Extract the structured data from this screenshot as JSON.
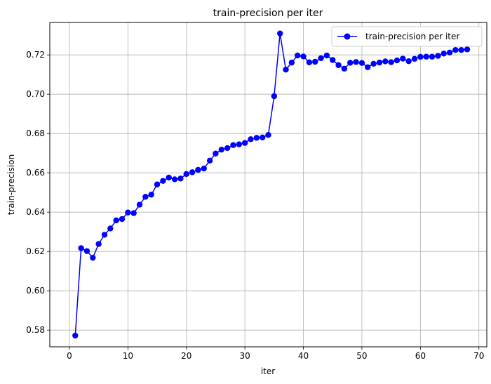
{
  "chart_data": {
    "type": "line",
    "title": "train-precision per iter",
    "xlabel": "iter",
    "ylabel": "train-precision",
    "xlim": [
      -3.35,
      71.35
    ],
    "ylim": [
      0.5715,
      0.7365
    ],
    "xticks": [
      0,
      10,
      20,
      30,
      40,
      50,
      60,
      70
    ],
    "yticks": [
      0.58,
      0.6,
      0.62,
      0.64,
      0.66,
      0.68,
      0.7,
      0.72
    ],
    "xtick_labels": [
      "0",
      "10",
      "20",
      "30",
      "40",
      "50",
      "60",
      "70"
    ],
    "ytick_labels": [
      "0.58",
      "0.60",
      "0.62",
      "0.64",
      "0.66",
      "0.68",
      "0.70",
      "0.72"
    ],
    "grid": true,
    "legend": {
      "position": "top-right"
    },
    "series": [
      {
        "name": "train-precision per iter",
        "color": "#0000ff",
        "marker": "circle",
        "x": [
          1,
          2,
          3,
          4,
          5,
          6,
          7,
          8,
          9,
          10,
          11,
          12,
          13,
          14,
          15,
          16,
          17,
          18,
          19,
          20,
          21,
          22,
          23,
          24,
          25,
          26,
          27,
          28,
          29,
          30,
          31,
          32,
          33,
          34,
          35,
          36,
          37,
          38,
          39,
          40,
          41,
          42,
          43,
          44,
          45,
          46,
          47,
          48,
          49,
          50,
          51,
          52,
          53,
          54,
          55,
          56,
          57,
          58,
          59,
          60,
          61,
          62,
          63,
          64,
          65,
          66,
          67,
          68
        ],
        "y": [
          0.5772,
          0.6217,
          0.6202,
          0.6168,
          0.6238,
          0.6285,
          0.6317,
          0.6358,
          0.6365,
          0.6398,
          0.6395,
          0.6438,
          0.6478,
          0.6489,
          0.6541,
          0.6559,
          0.6576,
          0.6567,
          0.6571,
          0.6594,
          0.6603,
          0.6615,
          0.6622,
          0.6662,
          0.6698,
          0.6718,
          0.6726,
          0.6741,
          0.6745,
          0.6752,
          0.6771,
          0.6778,
          0.678,
          0.6793,
          0.699,
          0.7309,
          0.7125,
          0.7161,
          0.7197,
          0.7192,
          0.7162,
          0.7165,
          0.7183,
          0.7197,
          0.7174,
          0.7148,
          0.713,
          0.716,
          0.7164,
          0.7159,
          0.7137,
          0.7155,
          0.7161,
          0.7167,
          0.7163,
          0.7172,
          0.7181,
          0.7168,
          0.718,
          0.719,
          0.7191,
          0.7191,
          0.7195,
          0.7207,
          0.7212,
          0.7225,
          0.7225,
          0.7228
        ]
      }
    ]
  }
}
